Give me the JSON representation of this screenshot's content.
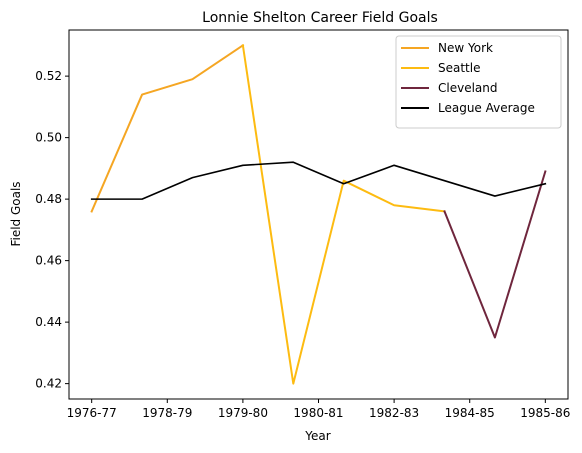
{
  "chart_data": {
    "type": "line",
    "title": "Lonnie Shelton Career Field Goals",
    "xlabel": "Year",
    "ylabel": "Field Goals",
    "x_tick_labels": [
      "1976-77",
      "1978-79",
      "1979-80",
      "1980-81",
      "1982-83",
      "1984-85",
      "1985-86"
    ],
    "ylim": [
      0.415,
      0.535
    ],
    "y_ticks": [
      0.42,
      0.44,
      0.46,
      0.48,
      0.5,
      0.52
    ],
    "grid": false,
    "legend_position": "top-right",
    "series": [
      {
        "name": "New York",
        "color": "#f5a623",
        "points": [
          [
            0,
            0.476
          ],
          [
            1,
            0.514
          ],
          [
            2,
            0.519
          ],
          [
            3,
            0.53
          ]
        ]
      },
      {
        "name": "Seattle",
        "color": "#fdbb11",
        "points": [
          [
            3,
            0.53
          ],
          [
            4,
            0.42
          ],
          [
            5,
            0.486
          ],
          [
            6,
            0.478
          ],
          [
            7,
            0.476
          ]
        ]
      },
      {
        "name": "Cleveland",
        "color": "#6f263d",
        "points": [
          [
            7,
            0.476
          ],
          [
            8,
            0.435
          ],
          [
            9,
            0.489
          ]
        ]
      },
      {
        "name": "League Average",
        "color": "#000000",
        "points": [
          [
            0,
            0.48
          ],
          [
            1,
            0.48
          ],
          [
            2,
            0.487
          ],
          [
            3,
            0.491
          ],
          [
            4,
            0.492
          ],
          [
            5,
            0.485
          ],
          [
            6,
            0.491
          ],
          [
            7,
            0.486
          ],
          [
            8,
            0.481
          ],
          [
            9,
            0.485
          ]
        ]
      }
    ]
  }
}
